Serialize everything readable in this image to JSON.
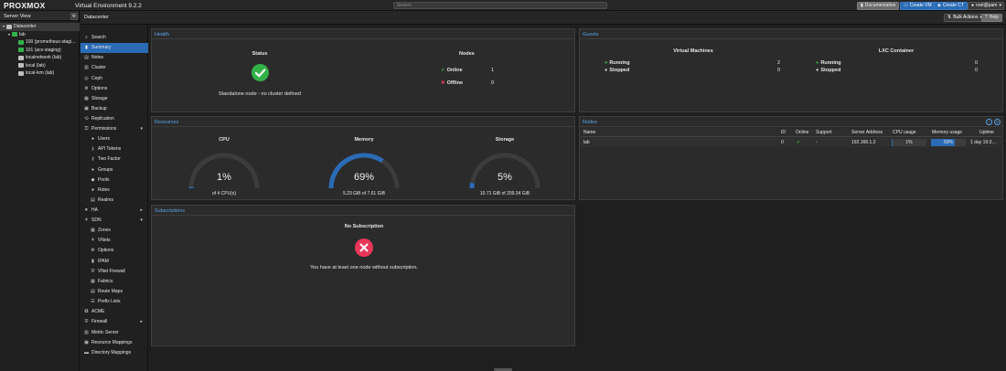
{
  "topbar": {
    "logo": "PROXMOX",
    "product": "Virtual Environment 9.2.2",
    "search_placeholder": "Search",
    "documentation": "Documentation",
    "create_vm": "Create VM",
    "create_ct": "Create CT",
    "user": "root@pam"
  },
  "tree": {
    "view_label": "Server View",
    "items": [
      {
        "label": "Datacenter"
      },
      {
        "label": "lab"
      },
      {
        "label": "100 (prometheus-stagi…"
      },
      {
        "label": "101 (acs-staging)"
      },
      {
        "label": "localnetwork (lab)"
      },
      {
        "label": "local (lab)"
      },
      {
        "label": "local-lvm (lab)"
      }
    ]
  },
  "breadcrumb": {
    "title": "Datacenter",
    "bulk_actions": "Bulk Actions",
    "help": "Help"
  },
  "nav": {
    "items": [
      {
        "label": "Search"
      },
      {
        "label": "Summary"
      },
      {
        "label": "Notes"
      },
      {
        "label": "Cluster"
      },
      {
        "label": "Ceph"
      },
      {
        "label": "Options"
      },
      {
        "label": "Storage"
      },
      {
        "label": "Backup"
      },
      {
        "label": "Replication"
      },
      {
        "label": "Permissions"
      },
      {
        "label": "Users"
      },
      {
        "label": "API Tokens"
      },
      {
        "label": "Two Factor"
      },
      {
        "label": "Groups"
      },
      {
        "label": "Pools"
      },
      {
        "label": "Roles"
      },
      {
        "label": "Realms"
      },
      {
        "label": "HA"
      },
      {
        "label": "SDN"
      },
      {
        "label": "Zones"
      },
      {
        "label": "VNets"
      },
      {
        "label": "Options"
      },
      {
        "label": "IPAM"
      },
      {
        "label": "VNet Firewall"
      },
      {
        "label": "Fabrics"
      },
      {
        "label": "Route Maps"
      },
      {
        "label": "Prefix Lists"
      },
      {
        "label": "ACME"
      },
      {
        "label": "Firewall"
      },
      {
        "label": "Metric Server"
      },
      {
        "label": "Resource Mappings"
      },
      {
        "label": "Directory Mappings"
      }
    ]
  },
  "health": {
    "title": "Health",
    "status_label": "Status",
    "status_text": "Standalone node - no cluster defined",
    "nodes_label": "Nodes",
    "online_label": "Online",
    "online_count": "1",
    "offline_label": "Offline",
    "offline_count": "0"
  },
  "guests": {
    "title": "Guests",
    "vm_label": "Virtual Machines",
    "lxc_label": "LXC Container",
    "vm_running_label": "Running",
    "vm_running": "2",
    "vm_stopped_label": "Stopped",
    "vm_stopped": "0",
    "ct_running_label": "Running",
    "ct_running": "0",
    "ct_stopped_label": "Stopped",
    "ct_stopped": "0"
  },
  "resources": {
    "title": "Resources",
    "cpu": {
      "label": "CPU",
      "value": "1%",
      "fraction": 0.01,
      "detail": "of 4 CPU(s)"
    },
    "memory": {
      "label": "Memory",
      "value": "69%",
      "fraction": 0.69,
      "detail": "5.23 GiB of 7.61 GiB"
    },
    "storage": {
      "label": "Storage",
      "value": "5%",
      "fraction": 0.05,
      "detail": "10.71 GiB of 209.34 GiB"
    }
  },
  "nodes": {
    "title": "Nodes",
    "headers": {
      "name": "Name",
      "id": "ID",
      "online": "Online",
      "support": "Support",
      "address": "Server Address",
      "cpu": "CPU usage",
      "memory": "Memory usage",
      "uptime": "Uptime"
    },
    "row": {
      "name": "lab",
      "id": "0",
      "support": "-",
      "address": "192.168.1.2",
      "cpu": "1%",
      "cpu_fraction": 0.01,
      "memory": "69%",
      "memory_fraction": 0.69,
      "uptime": "1 day 19:3…"
    }
  },
  "subscriptions": {
    "title": "Subscriptions",
    "heading": "No Subscription",
    "text": "You have at least one node without subscription."
  },
  "colors": {
    "accent": "#2a6bb5",
    "link_blue": "#5ba3e6",
    "ok_green": "#34b24a",
    "error_red": "#e9365b",
    "gauge_track": "#3c3c3c",
    "gauge_fill": "#2a6bb5"
  }
}
